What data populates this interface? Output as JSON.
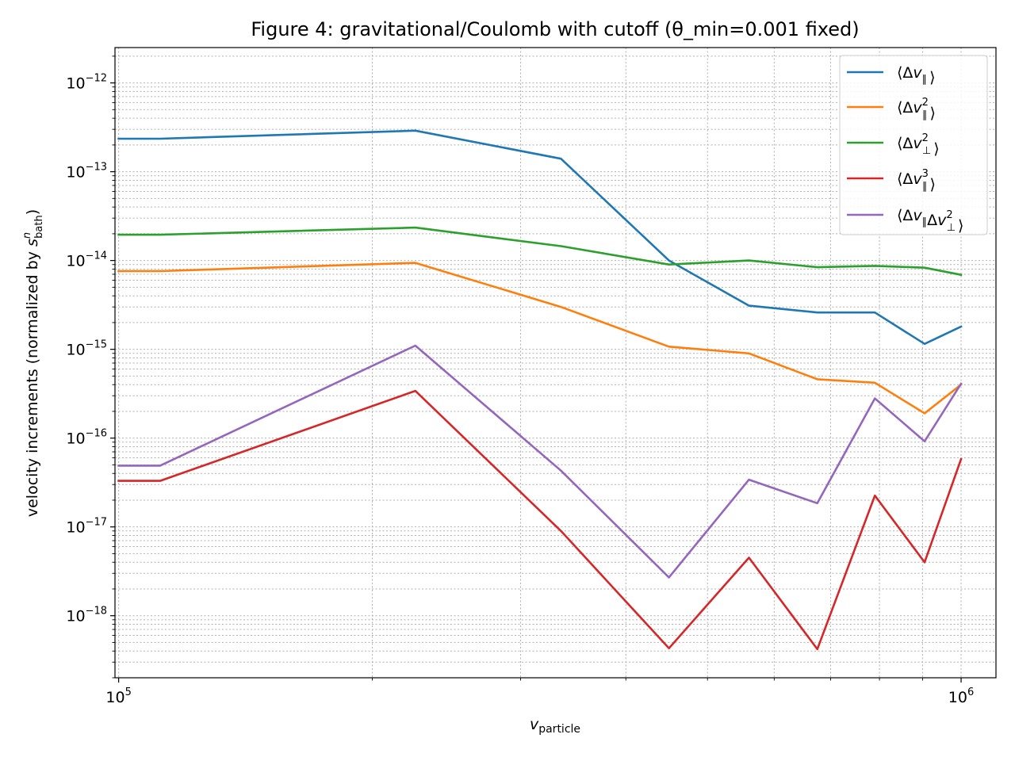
{
  "chart_data": {
    "type": "line",
    "title": "Figure 4: gravitational/Coulomb with cutoff (θ_min=0.001 fixed)",
    "xlabel": "v_particle",
    "ylabel": "velocity increments (normalized by s_bath^n)",
    "xscale": "log",
    "yscale": "log",
    "xlim": [
      99000,
      1100000
    ],
    "ylim": [
      2e-19,
      2.5e-12
    ],
    "grid": true,
    "legend_position": "top-right",
    "x_ticks": [
      {
        "value": 100000,
        "base": "10",
        "exp": "5"
      },
      {
        "value": 1000000,
        "base": "10",
        "exp": "6"
      }
    ],
    "y_ticks": [
      {
        "value": 1e-18,
        "base": "10",
        "exp": "−18"
      },
      {
        "value": 1e-17,
        "base": "10",
        "exp": "−17"
      },
      {
        "value": 1e-16,
        "base": "10",
        "exp": "−16"
      },
      {
        "value": 1e-15,
        "base": "10",
        "exp": "−15"
      },
      {
        "value": 1e-14,
        "base": "10",
        "exp": "−14"
      },
      {
        "value": 1e-13,
        "base": "10",
        "exp": "−13"
      },
      {
        "value": 1e-12,
        "base": "10",
        "exp": "−12"
      }
    ],
    "x": [
      100000,
      112000,
      225000,
      335000,
      450000,
      560000,
      675000,
      790000,
      905000,
      1000000
    ],
    "series": [
      {
        "name": "⟨Δv∥⟩",
        "color": "#1f77b4",
        "values": [
          2.35e-13,
          2.35e-13,
          2.9e-13,
          1.4e-13,
          1e-14,
          3.1e-15,
          2.6e-15,
          2.6e-15,
          1.15e-15,
          1.8e-15
        ]
      },
      {
        "name": "⟨Δv∥²⟩",
        "color": "#ff7f0e",
        "values": [
          7.6e-15,
          7.6e-15,
          9.4e-15,
          3e-15,
          1.07e-15,
          9e-16,
          4.6e-16,
          4.2e-16,
          1.9e-16,
          4e-16
        ]
      },
      {
        "name": "⟨Δv⊥²⟩",
        "color": "#2ca02c",
        "values": [
          1.95e-14,
          1.95e-14,
          2.35e-14,
          1.45e-14,
          9e-15,
          1e-14,
          8.4e-15,
          8.7e-15,
          8.3e-15,
          6.9e-15
        ]
      },
      {
        "name": "⟨Δv∥³⟩",
        "color": "#d62728",
        "values": [
          3.3e-17,
          3.3e-17,
          3.4e-16,
          9e-18,
          4.3e-19,
          4.5e-18,
          4.2e-19,
          2.25e-17,
          4e-18,
          5.8e-17
        ]
      },
      {
        "name": "⟨Δv∥Δv⊥²⟩",
        "color": "#9467bd",
        "values": [
          4.9e-17,
          4.9e-17,
          1.1e-15,
          4.3e-17,
          2.7e-18,
          3.4e-17,
          1.85e-17,
          2.8e-16,
          9.2e-17,
          4.1e-16
        ]
      }
    ],
    "legend": [
      {
        "base": "⟨Δ",
        "v": "v",
        "sub": "∥",
        "sup": "",
        "tail": "⟩"
      },
      {
        "base": "⟨Δ",
        "v": "v",
        "sub": "∥",
        "sup": "2",
        "tail": "⟩"
      },
      {
        "base": "⟨Δ",
        "v": "v",
        "sub": "⊥",
        "sup": "2",
        "tail": "⟩"
      },
      {
        "base": "⟨Δ",
        "v": "v",
        "sub": "∥",
        "sup": "3",
        "tail": "⟩"
      },
      {
        "base": "⟨Δ",
        "v": "v",
        "sub": "∥",
        "sup": "",
        "mid": "Δ",
        "v2": "v",
        "sub2": "⊥",
        "sup2": "2",
        "tail": "⟩"
      }
    ],
    "axis_text": {
      "xlabel_main": "v",
      "xlabel_sub": "particle",
      "ylabel_main": "velocity increments (normalized by ",
      "ylabel_s": "s",
      "ylabel_sup": "n",
      "ylabel_sub": "bath",
      "ylabel_close": ")"
    }
  }
}
